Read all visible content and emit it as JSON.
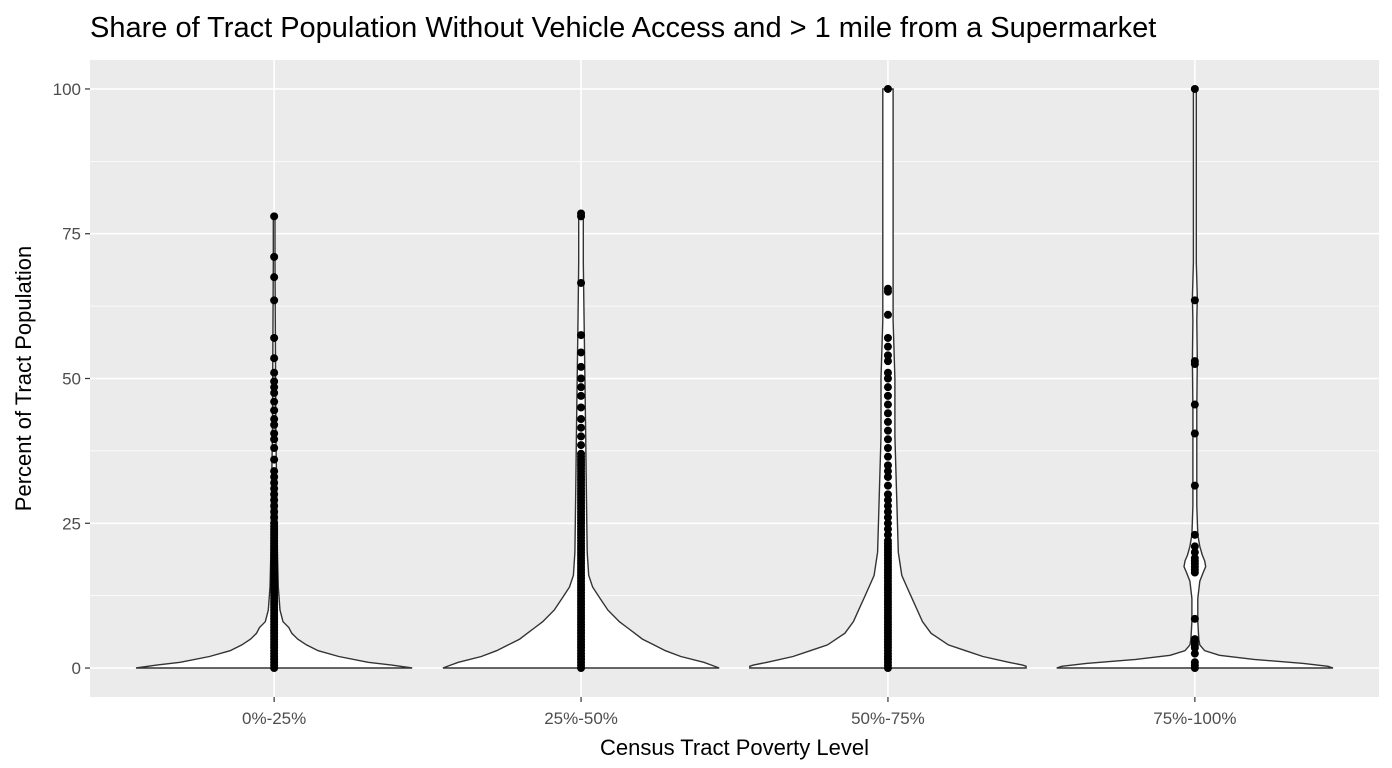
{
  "chart_data": {
    "type": "violin",
    "title": "Share of Tract Population Without Vehicle Access and > 1 mile from a Supermarket",
    "xlabel": "Census Tract Poverty Level",
    "ylabel": "Percent of Tract Population",
    "categories": [
      "0%-25%",
      "25%-50%",
      "50%-75%",
      "75%-100%"
    ],
    "ylim": [
      -5,
      105
    ],
    "yticks": [
      0,
      25,
      50,
      75,
      100
    ],
    "grid": true,
    "panel_color": "#ebebeb",
    "grid_color": "#ffffff",
    "violin_color": "#333333",
    "point_color": "#000000",
    "violins": [
      {
        "category": "0%-25%",
        "outline": [
          [
            0,
            47
          ],
          [
            0.5,
            40
          ],
          [
            1,
            32
          ],
          [
            2,
            22
          ],
          [
            3,
            15
          ],
          [
            4,
            11
          ],
          [
            5,
            8
          ],
          [
            6,
            6
          ],
          [
            7,
            5
          ],
          [
            8,
            3
          ],
          [
            10,
            2
          ],
          [
            14,
            1.4
          ],
          [
            20,
            1.1
          ],
          [
            30,
            0.9
          ],
          [
            40,
            0.6
          ],
          [
            50,
            0.5
          ],
          [
            60,
            0.4
          ],
          [
            70,
            0.3
          ],
          [
            78,
            0.3
          ]
        ],
        "points": [
          0,
          0.5,
          1,
          1.5,
          2,
          2.5,
          3,
          3.5,
          4,
          4.5,
          5,
          5.5,
          6,
          6.5,
          7,
          7.5,
          8,
          8.5,
          9,
          9.5,
          10,
          10.5,
          11,
          11.5,
          12,
          12.5,
          13,
          13.5,
          14,
          14.5,
          15,
          15.5,
          16,
          16.5,
          17,
          17.5,
          18,
          18.5,
          19,
          19.5,
          20,
          20.5,
          21,
          21.5,
          22,
          22.5,
          23,
          23.5,
          24,
          24.5,
          25,
          26,
          27,
          28,
          29,
          30,
          31,
          32,
          33,
          34,
          36,
          38,
          39.5,
          40.5,
          42,
          43,
          44.5,
          46,
          47.5,
          48.5,
          49.5,
          51,
          53.5,
          57,
          63.5,
          67.5,
          71,
          78
        ]
      },
      {
        "category": "25%-50%",
        "outline": [
          [
            0,
            18
          ],
          [
            0.5,
            17
          ],
          [
            1,
            16
          ],
          [
            2,
            13
          ],
          [
            3,
            11
          ],
          [
            4,
            9.5
          ],
          [
            5,
            8
          ],
          [
            6,
            7
          ],
          [
            7,
            6
          ],
          [
            8,
            5
          ],
          [
            10,
            3.5
          ],
          [
            12,
            2.5
          ],
          [
            14,
            1.5
          ],
          [
            16,
            1
          ],
          [
            20,
            0.8
          ],
          [
            30,
            0.7
          ],
          [
            40,
            0.6
          ],
          [
            50,
            0.5
          ],
          [
            60,
            0.4
          ],
          [
            70,
            0.3
          ],
          [
            78.5,
            0.3
          ]
        ],
        "points": [
          0,
          0.5,
          1,
          1.5,
          2,
          2.5,
          3,
          3.5,
          4,
          4.5,
          5,
          5.5,
          6,
          6.5,
          7,
          7.5,
          8,
          8.5,
          9,
          9.5,
          10,
          10.5,
          11,
          11.5,
          12,
          12.5,
          13,
          13.5,
          14,
          14.5,
          15,
          15.5,
          16,
          16.5,
          17,
          17.5,
          18,
          18.5,
          19,
          19.5,
          20,
          20.5,
          21,
          21.5,
          22,
          22.5,
          23,
          23.5,
          24,
          24.5,
          25,
          25.5,
          26,
          26.5,
          27,
          27.5,
          28,
          28.5,
          29,
          29.5,
          30,
          30.5,
          31,
          31.5,
          32,
          32.5,
          33,
          33.5,
          34,
          34.5,
          35,
          35.5,
          36,
          36.5,
          37,
          38.5,
          40,
          41.5,
          43,
          45,
          47,
          48.5,
          50,
          52,
          54.5,
          57.5,
          66.5,
          78,
          78.5
        ]
      },
      {
        "category": "50%-75%",
        "outline": [
          [
            0,
            8
          ],
          [
            0.3,
            8
          ],
          [
            0.5,
            7.8
          ],
          [
            1,
            7
          ],
          [
            2,
            5.5
          ],
          [
            3,
            4.5
          ],
          [
            4,
            3.5
          ],
          [
            5,
            3
          ],
          [
            6,
            2.5
          ],
          [
            8,
            2
          ],
          [
            10,
            1.7
          ],
          [
            12,
            1.4
          ],
          [
            14,
            1.1
          ],
          [
            16,
            0.8
          ],
          [
            20,
            0.6
          ],
          [
            30,
            0.5
          ],
          [
            40,
            0.4
          ],
          [
            50,
            0.4
          ],
          [
            60,
            0.3
          ],
          [
            70,
            0.3
          ],
          [
            80,
            0.3
          ],
          [
            90,
            0.3
          ],
          [
            100,
            0.3
          ]
        ],
        "points": [
          0,
          0.5,
          1,
          1.5,
          2,
          2.5,
          3,
          3.5,
          4,
          4.5,
          5,
          5.5,
          6,
          6.5,
          7,
          7.5,
          8,
          8.5,
          9,
          9.5,
          10,
          10.5,
          11,
          11.5,
          12,
          12.5,
          13,
          13.5,
          14,
          14.5,
          15,
          15.5,
          16,
          16.5,
          17,
          17.5,
          18,
          18.5,
          19,
          19.5,
          20,
          20.5,
          21,
          21.5,
          22,
          23,
          24,
          25,
          26,
          27,
          28,
          29,
          30,
          31.5,
          33,
          34,
          35,
          36.5,
          38,
          39.5,
          41,
          42.5,
          44,
          45.5,
          47,
          48.5,
          50,
          51,
          53,
          54,
          55.5,
          57,
          61,
          65,
          65.5,
          100
        ]
      },
      {
        "category": "75%-100%",
        "outline": [
          [
            0,
            28
          ],
          [
            0.3,
            27
          ],
          [
            0.8,
            22
          ],
          [
            1.5,
            12
          ],
          [
            2.2,
            5
          ],
          [
            3,
            2
          ],
          [
            4,
            1
          ],
          [
            5,
            0.8
          ],
          [
            8,
            0.6
          ],
          [
            12,
            0.6
          ],
          [
            15,
            1
          ],
          [
            16.5,
            1.7
          ],
          [
            17.5,
            2.2
          ],
          [
            18.5,
            2
          ],
          [
            19.5,
            1.5
          ],
          [
            21,
            1
          ],
          [
            23,
            0.6
          ],
          [
            28,
            0.4
          ],
          [
            35,
            0.4
          ],
          [
            45,
            0.4
          ],
          [
            53,
            0.5
          ],
          [
            60,
            0.4
          ],
          [
            64,
            0.5
          ],
          [
            70,
            0.3
          ],
          [
            80,
            0.3
          ],
          [
            90,
            0.3
          ],
          [
            100,
            0.3
          ]
        ],
        "points": [
          0,
          0.5,
          1,
          2.5,
          3.5,
          4,
          4.5,
          5,
          8.5,
          16.5,
          17,
          17.5,
          18,
          18.5,
          19,
          20,
          21,
          23,
          31.5,
          40.5,
          45.5,
          52.5,
          53,
          63.5,
          100
        ]
      }
    ]
  }
}
